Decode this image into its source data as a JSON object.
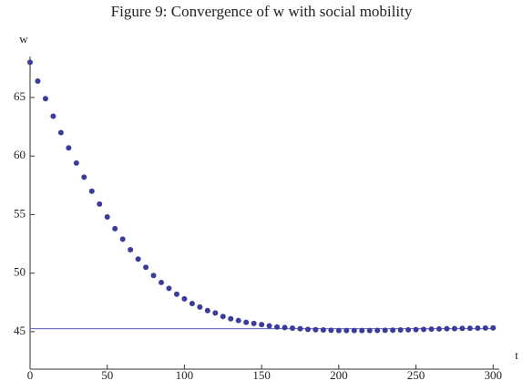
{
  "chart_data": {
    "type": "scatter",
    "title": "Figure 9: Convergence of w with social mobility",
    "x_label": "t",
    "y_label": "w",
    "x": [
      0,
      5,
      10,
      15,
      20,
      25,
      30,
      35,
      40,
      45,
      50,
      55,
      60,
      65,
      70,
      75,
      80,
      85,
      90,
      95,
      100,
      105,
      110,
      115,
      120,
      125,
      130,
      135,
      140,
      145,
      150,
      155,
      160,
      165,
      170,
      175,
      180,
      185,
      190,
      195,
      200,
      205,
      210,
      215,
      220,
      225,
      230,
      235,
      240,
      245,
      250,
      255,
      260,
      265,
      270,
      275,
      280,
      285,
      290,
      295,
      300
    ],
    "values": [
      68.0,
      66.4,
      64.9,
      63.4,
      62.0,
      60.7,
      59.4,
      58.2,
      57.0,
      55.9,
      54.8,
      53.8,
      52.9,
      52.0,
      51.2,
      50.5,
      49.8,
      49.2,
      48.7,
      48.2,
      47.8,
      47.4,
      47.1,
      46.8,
      46.6,
      46.3,
      46.1,
      45.95,
      45.8,
      45.7,
      45.6,
      45.5,
      45.4,
      45.35,
      45.3,
      45.25,
      45.2,
      45.17,
      45.15,
      45.12,
      45.1,
      45.1,
      45.1,
      45.1,
      45.1,
      45.11,
      45.12,
      45.13,
      45.15,
      45.16,
      45.18,
      45.2,
      45.22,
      45.23,
      45.25,
      45.26,
      45.28,
      45.29,
      45.3,
      45.31,
      45.32
    ],
    "color": "#3b3b9c",
    "hline": 45.25,
    "hline_color": "#5a5ac0",
    "xlim": [
      0,
      304
    ],
    "ylim": [
      41.8,
      68.5
    ],
    "xticks": [
      0,
      50,
      100,
      150,
      200,
      250,
      300
    ],
    "yticks": [
      45,
      50,
      55,
      60,
      65
    ]
  }
}
